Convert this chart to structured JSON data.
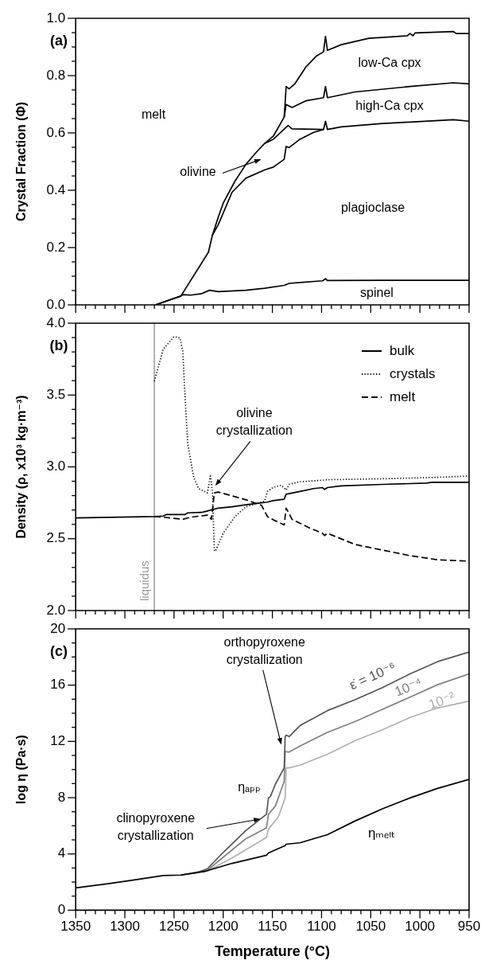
{
  "chart_data": [
    {
      "type": "line",
      "ylabel": "Crystal Fraction (Φ)",
      "xlim": [
        1350,
        950
      ],
      "ylim": [
        0,
        1
      ],
      "tick_labels": "y",
      "xticks": [
        1350,
        {
          "value": 1340,
          "label": null
        },
        {
          "value": 1330,
          "label": null
        },
        {
          "value": 1320,
          "label": null
        },
        {
          "value": 1310,
          "label": null
        },
        1300,
        {
          "value": 1290,
          "label": null
        },
        {
          "value": 1280,
          "label": null
        },
        {
          "value": 1270,
          "label": null
        },
        {
          "value": 1260,
          "label": null
        },
        1250,
        {
          "value": 1240,
          "label": null
        },
        {
          "value": 1230,
          "label": null
        },
        {
          "value": 1220,
          "label": null
        },
        {
          "value": 1210,
          "label": null
        },
        1200,
        {
          "value": 1190,
          "label": null
        },
        {
          "value": 1180,
          "label": null
        },
        {
          "value": 1170,
          "label": null
        },
        {
          "value": 1160,
          "label": null
        },
        1150,
        {
          "value": 1140,
          "label": null
        },
        {
          "value": 1130,
          "label": null
        },
        {
          "value": 1120,
          "label": null
        },
        {
          "value": 1110,
          "label": null
        },
        1100,
        {
          "value": 1090,
          "label": null
        },
        {
          "value": 1080,
          "label": null
        },
        {
          "value": 1070,
          "label": null
        },
        {
          "value": 1060,
          "label": null
        },
        1050,
        {
          "value": 1040,
          "label": null
        },
        {
          "value": 1030,
          "label": null
        },
        {
          "value": 1020,
          "label": null
        },
        {
          "value": 1010,
          "label": null
        },
        1000,
        {
          "value": 990,
          "label": null
        },
        {
          "value": 980,
          "label": null
        },
        {
          "value": 970,
          "label": null
        },
        {
          "value": 960,
          "label": null
        },
        950
      ],
      "yticks": [
        {
          "value": 0,
          "label": "0.0"
        },
        {
          "value": 0.05,
          "label": null
        },
        {
          "value": 0.1,
          "label": null
        },
        {
          "value": 0.15,
          "label": null
        },
        0.2,
        {
          "value": 0.25,
          "label": null
        },
        {
          "value": 0.3,
          "label": null
        },
        {
          "value": 0.35,
          "label": null
        },
        0.4,
        {
          "value": 0.45,
          "label": null
        },
        {
          "value": 0.5,
          "label": null
        },
        {
          "value": 0.55,
          "label": null
        },
        0.6,
        {
          "value": 0.65,
          "label": null
        },
        {
          "value": 0.7,
          "label": null
        },
        {
          "value": 0.75,
          "label": null
        },
        0.8,
        {
          "value": 0.85,
          "label": null
        },
        {
          "value": 0.9,
          "label": null
        },
        {
          "value": 0.95,
          "label": null
        },
        {
          "value": 1,
          "label": "1.0"
        }
      ],
      "series": [
        {
          "color": "#000000",
          "x": [
            1269,
            1243,
            1241,
            1233,
            1222,
            1214,
            1205,
            1177,
            1158,
            1138,
            1133,
            1122,
            1099,
            1096,
            1094,
            1038,
            950
          ],
          "values": [
            0,
            0.031,
            0.036,
            0.034,
            0.039,
            0.051,
            0.046,
            0.051,
            0.058,
            0.068,
            0.075,
            0.078,
            0.084,
            0.091,
            0.085,
            0.086,
            0.086
          ]
        },
        {
          "color": "#000000",
          "x": [
            1211,
            1205,
            1191,
            1177,
            1158,
            1149,
            1138,
            1136,
            1133,
            1122,
            1108,
            1098,
            1096,
            1094,
            1080,
            1038,
            1010,
            966,
            950
          ],
          "values": [
            0.243,
            0.28,
            0.393,
            0.442,
            0.471,
            0.481,
            0.508,
            0.553,
            0.549,
            0.578,
            0.602,
            0.612,
            0.641,
            0.612,
            0.621,
            0.633,
            0.638,
            0.646,
            0.641
          ]
        },
        {
          "color": "#000000",
          "x": [
            1158,
            1149,
            1136,
            1134,
            1130,
            1098
          ],
          "values": [
            0.563,
            0.578,
            0.62,
            0.626,
            0.614,
            0.612
          ]
        },
        {
          "color": "#000000",
          "x": [
            1138,
            1136,
            1130,
            1116,
            1098,
            1096,
            1094,
            1066,
            1010,
            966,
            950
          ],
          "values": [
            0.655,
            0.699,
            0.689,
            0.712,
            0.723,
            0.762,
            0.723,
            0.743,
            0.762,
            0.775,
            0.771
          ]
        },
        {
          "color": "#000000",
          "x": [
            1269,
            1243,
            1215,
            1211,
            1205,
            1200,
            1188,
            1177,
            1166,
            1158,
            1149,
            1138,
            1136,
            1133,
            1127,
            1116,
            1105,
            1098,
            1096,
            1094,
            1080,
            1052,
            1013,
            1010,
            1007,
            1005,
            966,
            963,
            950
          ],
          "values": [
            0,
            0.031,
            0.184,
            0.243,
            0.306,
            0.355,
            0.432,
            0.49,
            0.534,
            0.563,
            0.589,
            0.655,
            0.762,
            0.754,
            0.772,
            0.83,
            0.869,
            0.883,
            0.937,
            0.888,
            0.908,
            0.93,
            0.939,
            0.947,
            0.939,
            0.949,
            0.954,
            0.947,
            0.947
          ]
        }
      ],
      "annotations": [
        "(a)",
        "melt",
        "olivine",
        "low-Ca cpx",
        "high-Ca cpx",
        "plagioclase",
        "spinel"
      ]
    },
    {
      "type": "line",
      "ylabel": "Density (ρ, x10³ kg·m⁻³)",
      "xlim": [
        1350,
        950
      ],
      "ylim": [
        2,
        4
      ],
      "tick_labels": "y",
      "legend": "top right",
      "xticks": [
        1350,
        {
          "value": 1340,
          "label": null
        },
        {
          "value": 1330,
          "label": null
        },
        {
          "value": 1320,
          "label": null
        },
        {
          "value": 1310,
          "label": null
        },
        1300,
        {
          "value": 1290,
          "label": null
        },
        {
          "value": 1280,
          "label": null
        },
        {
          "value": 1270,
          "label": null
        },
        {
          "value": 1260,
          "label": null
        },
        1250,
        {
          "value": 1240,
          "label": null
        },
        {
          "value": 1230,
          "label": null
        },
        {
          "value": 1220,
          "label": null
        },
        {
          "value": 1210,
          "label": null
        },
        1200,
        {
          "value": 1190,
          "label": null
        },
        {
          "value": 1180,
          "label": null
        },
        {
          "value": 1170,
          "label": null
        },
        {
          "value": 1160,
          "label": null
        },
        1150,
        {
          "value": 1140,
          "label": null
        },
        {
          "value": 1130,
          "label": null
        },
        {
          "value": 1120,
          "label": null
        },
        {
          "value": 1110,
          "label": null
        },
        1100,
        {
          "value": 1090,
          "label": null
        },
        {
          "value": 1080,
          "label": null
        },
        {
          "value": 1070,
          "label": null
        },
        {
          "value": 1060,
          "label": null
        },
        1050,
        {
          "value": 1040,
          "label": null
        },
        {
          "value": 1030,
          "label": null
        },
        {
          "value": 1020,
          "label": null
        },
        {
          "value": 1010,
          "label": null
        },
        1000,
        {
          "value": 990,
          "label": null
        },
        {
          "value": 980,
          "label": null
        },
        {
          "value": 970,
          "label": null
        },
        {
          "value": 960,
          "label": null
        },
        950
      ],
      "yticks": [
        {
          "value": 2,
          "label": "2.0"
        },
        {
          "value": 2.1,
          "label": null
        },
        {
          "value": 2.2,
          "label": null
        },
        {
          "value": 2.3,
          "label": null
        },
        {
          "value": 2.4,
          "label": null
        },
        2.5,
        {
          "value": 2.6,
          "label": null
        },
        {
          "value": 2.7,
          "label": null
        },
        {
          "value": 2.8,
          "label": null
        },
        {
          "value": 2.9,
          "label": null
        },
        {
          "value": 3,
          "label": "3.0"
        },
        {
          "value": 3.1,
          "label": null
        },
        {
          "value": 3.2,
          "label": null
        },
        {
          "value": 3.3,
          "label": null
        },
        {
          "value": 3.4,
          "label": null
        },
        3.5,
        {
          "value": 3.6,
          "label": null
        },
        {
          "value": 3.7,
          "label": null
        },
        {
          "value": 3.8,
          "label": null
        },
        {
          "value": 3.9,
          "label": null
        },
        {
          "value": 4,
          "label": "4.0"
        }
      ],
      "series": [
        {
          "name": "bulk",
          "color": "#000000",
          "line_style": "solid",
          "x": [
            1350,
            1270,
            1261,
            1258,
            1239,
            1236,
            1222,
            1216,
            1205,
            1191,
            1177,
            1166,
            1155,
            1149,
            1138,
            1136,
            1122,
            1108,
            1099,
            1097,
            1094,
            1080,
            1038,
            993,
            988,
            950
          ],
          "values": [
            2.645,
            2.654,
            2.658,
            2.668,
            2.668,
            2.68,
            2.683,
            2.693,
            2.713,
            2.722,
            2.736,
            2.746,
            2.755,
            2.765,
            2.775,
            2.81,
            2.829,
            2.849,
            2.856,
            2.843,
            2.856,
            2.868,
            2.878,
            2.887,
            2.893,
            2.893
          ]
        },
        {
          "name": "crystals",
          "color": "#000000",
          "line_style": "dotted",
          "x": [
            1270,
            1261,
            1250,
            1244,
            1241,
            1239,
            1236,
            1230,
            1225,
            1216,
            1213,
            1211,
            1209,
            1208,
            1200,
            1188,
            1177,
            1166,
            1158,
            1155,
            1149,
            1141,
            1136,
            1133,
            1122,
            1099,
            1094,
            1038,
            988,
            950
          ],
          "values": [
            3.596,
            3.819,
            3.907,
            3.897,
            3.8,
            3.509,
            3.159,
            2.926,
            2.849,
            2.819,
            2.946,
            2.829,
            2.421,
            2.412,
            2.538,
            2.654,
            2.722,
            2.746,
            2.761,
            2.829,
            2.858,
            2.872,
            2.839,
            2.878,
            2.897,
            2.907,
            2.911,
            2.917,
            2.926,
            2.936
          ]
        },
        {
          "name": "melt",
          "color": "#000000",
          "line_style": "dashed",
          "x": [
            1270,
            1261,
            1241,
            1233,
            1216,
            1212,
            1209,
            1205,
            1177,
            1161,
            1155,
            1149,
            1138,
            1136,
            1130,
            1113,
            1099,
            1097,
            1094,
            1066,
            1038,
            1010,
            982,
            950
          ],
          "values": [
            2.654,
            2.65,
            2.635,
            2.65,
            2.664,
            2.635,
            2.819,
            2.825,
            2.771,
            2.732,
            2.654,
            2.631,
            2.596,
            2.713,
            2.635,
            2.577,
            2.538,
            2.522,
            2.538,
            2.46,
            2.421,
            2.382,
            2.353,
            2.344
          ]
        }
      ],
      "ref_lines": [
        {
          "axis": "x",
          "value": 1270,
          "label": "liquidus",
          "color": "#999999"
        }
      ],
      "annotations": [
        "(b)",
        {
          "text": "olivine crystallization",
          "x": 1208,
          "y": 2.868
        }
      ]
    },
    {
      "type": "line",
      "ylabel": "log η (Pa·s)",
      "xlabel": "Temperature (°C)",
      "xlim": [
        1350,
        950
      ],
      "ylim": [
        0,
        20
      ],
      "xticks": [
        1350,
        {
          "value": 1340,
          "label": null
        },
        {
          "value": 1330,
          "label": null
        },
        {
          "value": 1320,
          "label": null
        },
        {
          "value": 1310,
          "label": null
        },
        1300,
        {
          "value": 1290,
          "label": null
        },
        {
          "value": 1280,
          "label": null
        },
        {
          "value": 1270,
          "label": null
        },
        {
          "value": 1260,
          "label": null
        },
        1250,
        {
          "value": 1240,
          "label": null
        },
        {
          "value": 1230,
          "label": null
        },
        {
          "value": 1220,
          "label": null
        },
        {
          "value": 1210,
          "label": null
        },
        1200,
        {
          "value": 1190,
          "label": null
        },
        {
          "value": 1180,
          "label": null
        },
        {
          "value": 1170,
          "label": null
        },
        {
          "value": 1160,
          "label": null
        },
        1150,
        {
          "value": 1140,
          "label": null
        },
        {
          "value": 1130,
          "label": null
        },
        {
          "value": 1120,
          "label": null
        },
        {
          "value": 1110,
          "label": null
        },
        1100,
        {
          "value": 1090,
          "label": null
        },
        {
          "value": 1080,
          "label": null
        },
        {
          "value": 1070,
          "label": null
        },
        {
          "value": 1060,
          "label": null
        },
        1050,
        {
          "value": 1040,
          "label": null
        },
        {
          "value": 1030,
          "label": null
        },
        {
          "value": 1020,
          "label": null
        },
        {
          "value": 1010,
          "label": null
        },
        1000,
        {
          "value": 990,
          "label": null
        },
        {
          "value": 980,
          "label": null
        },
        {
          "value": 970,
          "label": null
        },
        {
          "value": 960,
          "label": null
        },
        950
      ],
      "yticks": [
        0,
        {
          "value": 1,
          "label": null
        },
        {
          "value": 2,
          "label": null
        },
        {
          "value": 3,
          "label": null
        },
        4,
        {
          "value": 5,
          "label": null
        },
        {
          "value": 6,
          "label": null
        },
        {
          "value": 7,
          "label": null
        },
        8,
        {
          "value": 9,
          "label": null
        },
        {
          "value": 10,
          "label": null
        },
        {
          "value": 11,
          "label": null
        },
        12,
        {
          "value": 13,
          "label": null
        },
        {
          "value": 14,
          "label": null
        },
        {
          "value": 15,
          "label": null
        },
        16,
        {
          "value": 17,
          "label": null
        },
        {
          "value": 18,
          "label": null
        },
        {
          "value": 19,
          "label": null
        },
        20
      ],
      "series": [
        {
          "name": "ηₘₑₗₜ",
          "color": "#000000",
          "x": [
            1350,
            1317,
            1289,
            1261,
            1243,
            1219,
            1191,
            1156,
            1154,
            1137,
            1136,
            1122,
            1094,
            1066,
            1038,
            1010,
            982,
            950
          ],
          "values": [
            1.59,
            1.88,
            2.17,
            2.46,
            2.5,
            2.75,
            3.33,
            3.91,
            4.07,
            4.59,
            4.69,
            4.79,
            5.37,
            6.34,
            7.21,
            7.98,
            8.66,
            9.3
          ]
        },
        {
          "name": "ε̇ = 10⁻⁶",
          "color": "#555555",
          "x": [
            1243,
            1227,
            1216,
            1200,
            1177,
            1156,
            1154,
            1152,
            1147,
            1138,
            1137,
            1136,
            1133,
            1122,
            1094,
            1066,
            1038,
            1010,
            982,
            950
          ],
          "values": [
            2.5,
            2.66,
            2.95,
            4.11,
            5.66,
            6.82,
            7.98,
            8.08,
            8.95,
            10.12,
            12.34,
            12.44,
            12.34,
            13.12,
            14.19,
            14.96,
            15.83,
            16.8,
            17.67,
            18.35
          ]
        },
        {
          "name": "10⁻⁴",
          "color": "#808080",
          "x": [
            1243,
            1216,
            1194,
            1177,
            1156,
            1154,
            1147,
            1138,
            1137,
            1133,
            1122,
            1094,
            1066,
            1038,
            1010,
            982,
            950
          ],
          "values": [
            2.5,
            2.85,
            4.11,
            5.08,
            5.85,
            6.82,
            7.4,
            9.15,
            11.28,
            11.24,
            11.67,
            12.64,
            13.41,
            14.28,
            15.15,
            16.03,
            16.8
          ]
        },
        {
          "name": "10⁻²",
          "color": "#b0b0b0",
          "x": [
            1243,
            1216,
            1191,
            1156,
            1154,
            1144,
            1137,
            1136,
            1133,
            1122,
            1094,
            1066,
            1038,
            1010,
            982,
            950
          ],
          "values": [
            2.5,
            2.79,
            3.72,
            5.17,
            5.76,
            6.63,
            7.98,
            10.12,
            10.12,
            10.31,
            11.09,
            12.05,
            12.83,
            13.7,
            14.38,
            14.86
          ]
        }
      ],
      "annotations": [
        "(c)",
        {
          "text": "orthopyroxene crystallization",
          "x": 1141,
          "y": 11.76
        },
        "ηₐₚₚ",
        {
          "text": "clinopyroxene crystallization",
          "x": 1162,
          "y": 6.49
        }
      ]
    }
  ]
}
